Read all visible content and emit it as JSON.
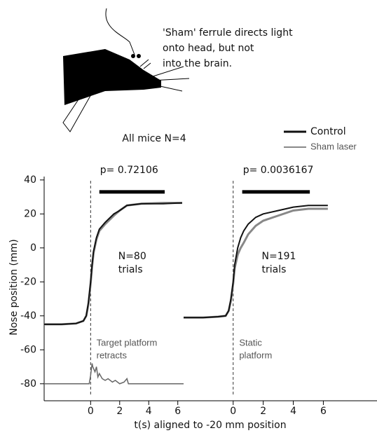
{
  "annotation_lines": [
    "'Sham' ferrule directs light",
    "onto head, but not",
    "into the brain."
  ],
  "chart_data": {
    "type": "line",
    "title": "All mice N=4",
    "y_label": "Nose position (mm)",
    "x_label": "t(s) aligned to -20 mm position",
    "ylim": [
      -90,
      42
    ],
    "yticks": [
      40,
      20,
      0,
      -20,
      -40,
      -60,
      -80
    ],
    "panels": [
      {
        "xlim": [
          -3.2,
          6.4
        ],
        "xticks": [
          0,
          2,
          4,
          6
        ],
        "p_label": "p= 0.72106",
        "n_label": [
          "N=80",
          "trials"
        ],
        "event_label": [
          "Target platform",
          "retracts"
        ],
        "sig_bar": {
          "x": [
            0.6,
            5.1
          ],
          "y": 33
        },
        "x": [
          -3.2,
          -2,
          -1,
          -0.5,
          -0.3,
          -0.15,
          0,
          0.1,
          0.2,
          0.4,
          0.6,
          1,
          1.6,
          2,
          2.5,
          3.5,
          5,
          6.3
        ],
        "series": [
          {
            "name": "Control",
            "color": "#111111",
            "values": [
              -45,
              -45,
              -44.5,
              -43,
              -40,
              -32,
              -20,
              -10,
              -2,
              6,
              11,
              15,
              20,
              22,
              25,
              26,
              26,
              26.5
            ]
          },
          {
            "name": "Sham laser",
            "color": "#888888",
            "values": [
              -45,
              -45,
              -44.5,
              -43,
              -40,
              -33,
              -21,
              -11,
              -3,
              5,
              10,
              14,
              19,
              22,
              25,
              26,
              26.5,
              26.5
            ]
          }
        ],
        "event_trace": {
          "color": "#666666",
          "x": [
            -3.2,
            -0.1,
            0,
            0.1,
            0.15,
            0.3,
            0.4,
            0.5,
            0.6,
            0.8,
            1,
            1.2,
            1.5,
            1.7,
            2,
            2.3,
            2.5,
            2.6,
            6.4
          ],
          "values": [
            -80,
            -80,
            -75,
            -68,
            -70,
            -73,
            -70,
            -76,
            -74,
            -77,
            -78,
            -77,
            -79,
            -78,
            -80,
            -79,
            -77,
            -80,
            -80
          ]
        }
      },
      {
        "xlim": [
          -3.3,
          6.4
        ],
        "xticks": [
          0,
          2,
          4,
          6
        ],
        "p_label": "p= 0.0036167",
        "n_label": [
          "N=191",
          "trials"
        ],
        "event_label": [
          "Static",
          "platform"
        ],
        "sig_bar": {
          "x": [
            0.6,
            5.1
          ],
          "y": 33
        },
        "x": [
          -3.3,
          -2,
          -1,
          -0.5,
          -0.3,
          -0.15,
          0,
          0.1,
          0.3,
          0.5,
          0.7,
          1,
          1.5,
          2,
          3,
          4,
          5,
          6.3
        ],
        "series": [
          {
            "name": "Control",
            "color": "#111111",
            "values": [
              -41,
              -41,
              -40.5,
              -40,
              -37,
              -30,
              -20,
              -10,
              0,
              6,
              10,
              14,
              18,
              20,
              22,
              24,
              25,
              25
            ]
          },
          {
            "name": "Sham laser",
            "color": "#888888",
            "values": [
              -41,
              -41,
              -40.5,
              -40,
              -37,
              -31,
              -21,
              -12,
              -4,
              0,
              3,
              8,
              13,
              16,
              19,
              22,
              23,
              23
            ]
          }
        ]
      }
    ]
  }
}
